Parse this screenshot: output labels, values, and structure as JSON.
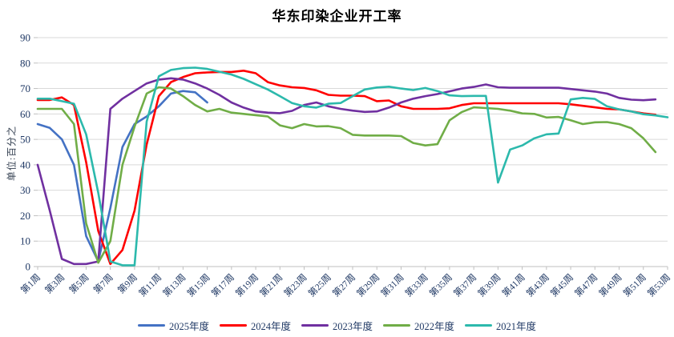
{
  "title": "华东印染企业开工率",
  "y_axis": {
    "label": "单位:百分之",
    "min": 0,
    "max": 90,
    "tick_step": 10,
    "ticks": [
      "0",
      "10",
      "20",
      "30",
      "40",
      "50",
      "60",
      "70",
      "80",
      "90"
    ]
  },
  "x_axis": {
    "labels": [
      "第1周",
      "第3周",
      "第5周",
      "第7周",
      "第9周",
      "第11周",
      "第13周",
      "第15周",
      "第17周",
      "第19周",
      "第21周",
      "第23周",
      "第25周",
      "第27周",
      "第29周",
      "第31周",
      "第33周",
      "第35周",
      "第37周",
      "第39周",
      "第41周",
      "第43周",
      "第45周",
      "第47周",
      "第49周",
      "第51周",
      "第53周"
    ]
  },
  "colors": {
    "grid": "#D9D9D9",
    "axis": "#BFBFBF",
    "tick_text": "#1F3864",
    "title_text": "#000000"
  },
  "chart_data": {
    "type": "line",
    "title": "华东印染企业开工率",
    "xlabel": "",
    "ylabel": "单位:百分之",
    "ylim": [
      0,
      90
    ],
    "x_unit": "周 (week of year)",
    "x_range": [
      1,
      53
    ],
    "grid": "horizontal",
    "legend_position": "bottom",
    "series": [
      {
        "name": "2025年度",
        "color": "#4472C4",
        "start_week": 1,
        "values": [
          56,
          54.5,
          50,
          40,
          12,
          2,
          23,
          47,
          56,
          59,
          63,
          68,
          69,
          68.5,
          64.5
        ]
      },
      {
        "name": "2024年度",
        "color": "#FF0000",
        "start_week": 1,
        "values": [
          65.5,
          65.5,
          66.5,
          63.5,
          41,
          14,
          1,
          6.5,
          22,
          48,
          67,
          72.5,
          74.5,
          76,
          76.3,
          76.5,
          76.5,
          77,
          76,
          72.5,
          71.2,
          70.5,
          70.2,
          69.3,
          67.5,
          67.2,
          67.2,
          67,
          65,
          65.3,
          63,
          62,
          62,
          62,
          62.2,
          63.5,
          64.2,
          64.2,
          64.2,
          64.2,
          64.2,
          64.2,
          64.2,
          64.2,
          63.8,
          63.2,
          62.6,
          62,
          61.8,
          61,
          60.2,
          59.7
        ]
      },
      {
        "name": "2023年度",
        "color": "#7030A0",
        "start_week": 1,
        "values": [
          40,
          22,
          3,
          1,
          1,
          2,
          62,
          66,
          69,
          72,
          73.5,
          74,
          73.5,
          72,
          70,
          67.5,
          64.5,
          62.5,
          61,
          60.5,
          60.3,
          61.2,
          63.5,
          64.5,
          63,
          62,
          61.3,
          60.8,
          61,
          62.5,
          64.5,
          66,
          67,
          67.8,
          68.9,
          70,
          70.6,
          71.6,
          70.5,
          70.3,
          70.3,
          70.3,
          70.3,
          70.3,
          69.8,
          69.3,
          68.8,
          68,
          66.3,
          65.6,
          65.4,
          65.7
        ]
      },
      {
        "name": "2022年度",
        "color": "#70AD47",
        "start_week": 1,
        "values": [
          62,
          62,
          62,
          56,
          17,
          1.5,
          10,
          40,
          55,
          68,
          70.5,
          70,
          67,
          63.5,
          61,
          62,
          60.5,
          60,
          59.5,
          59,
          55.5,
          54.4,
          56,
          55.1,
          55.2,
          54.4,
          51.8,
          51.5,
          51.5,
          51.5,
          51.3,
          48.6,
          47.6,
          48.1,
          57.5,
          60.7,
          62.6,
          62.3,
          62,
          61.3,
          60.2,
          60,
          58.6,
          58.8,
          57.5,
          56,
          56.7,
          56.8,
          56,
          54.4,
          50.4,
          45
        ]
      },
      {
        "name": "2021年度",
        "color": "#2CB9AC",
        "start_week": 1,
        "values": [
          66,
          66,
          65,
          64,
          52,
          29,
          2,
          0.5,
          0.5,
          57,
          74.8,
          77.3,
          78,
          78.2,
          77.7,
          76.6,
          75.5,
          73.8,
          71.7,
          69.6,
          67,
          64.3,
          63,
          62.5,
          64,
          64.3,
          67,
          69.6,
          70.4,
          70.7,
          70,
          69.4,
          70.2,
          69,
          67.3,
          67,
          67.1,
          67.1,
          33,
          46,
          47.6,
          50.4,
          52,
          52.3,
          65.7,
          66.3,
          65.9,
          63,
          61.8,
          61,
          59.9,
          59.4,
          58.7
        ]
      }
    ]
  }
}
